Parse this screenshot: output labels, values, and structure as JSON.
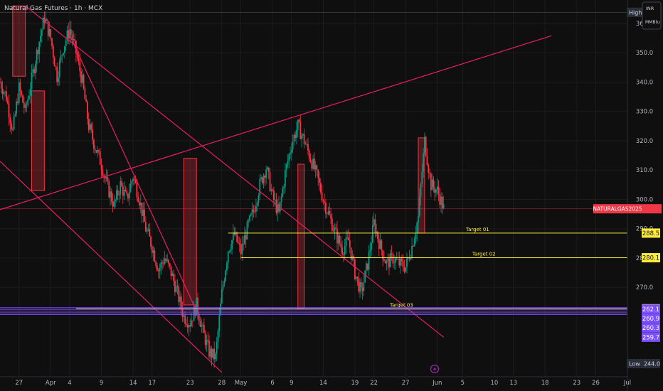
{
  "header": {
    "title": "Natural Gas Futures · 1h · MCX"
  },
  "currency": {
    "code": "INR",
    "unit": "MMBtu"
  },
  "chart_data": {
    "type": "candlestick",
    "y_range": [
      239.5,
      368
    ],
    "x_range": [
      "2025-03-24",
      "2025-07-01"
    ],
    "y_ticks": [
      270.0,
      280.0,
      290.0,
      300.0,
      310.0,
      320.0,
      330.0,
      340.0,
      350.0,
      360.0
    ],
    "x_ticks": [
      {
        "label": "27",
        "date": "2025-03-27"
      },
      {
        "label": "Apr",
        "date": "2025-04-01"
      },
      {
        "label": "4",
        "date": "2025-04-04"
      },
      {
        "label": "9",
        "date": "2025-04-09"
      },
      {
        "label": "14",
        "date": "2025-04-14"
      },
      {
        "label": "17",
        "date": "2025-04-17"
      },
      {
        "label": "23",
        "date": "2025-04-23"
      },
      {
        "label": "28",
        "date": "2025-04-28"
      },
      {
        "label": "May",
        "date": "2025-05-01"
      },
      {
        "label": "6",
        "date": "2025-05-06"
      },
      {
        "label": "9",
        "date": "2025-05-09"
      },
      {
        "label": "14",
        "date": "2025-05-14"
      },
      {
        "label": "19",
        "date": "2025-05-19"
      },
      {
        "label": "22",
        "date": "2025-05-22"
      },
      {
        "label": "27",
        "date": "2025-05-27"
      },
      {
        "label": "Jun",
        "date": "2025-06-01"
      },
      {
        "label": "5",
        "date": "2025-06-05"
      },
      {
        "label": "10",
        "date": "2025-06-10"
      },
      {
        "label": "13",
        "date": "2025-06-13"
      },
      {
        "label": "18",
        "date": "2025-06-18"
      },
      {
        "label": "23",
        "date": "2025-06-23"
      },
      {
        "label": "26",
        "date": "2025-06-26"
      },
      {
        "label": "Jul",
        "date": "2025-07-01"
      }
    ],
    "price_path": [
      [
        "2025-03-24",
        340
      ],
      [
        "2025-03-25",
        335
      ],
      [
        "2025-03-26",
        323
      ],
      [
        "2025-03-27",
        338
      ],
      [
        "2025-03-28",
        330
      ],
      [
        "2025-03-30",
        352
      ],
      [
        "2025-03-31",
        362
      ],
      [
        "2025-04-01",
        355
      ],
      [
        "2025-04-02",
        342
      ],
      [
        "2025-04-03",
        352
      ],
      [
        "2025-04-04",
        358
      ],
      [
        "2025-04-05",
        350
      ],
      [
        "2025-04-06",
        340
      ],
      [
        "2025-04-07",
        325
      ],
      [
        "2025-04-08",
        318
      ],
      [
        "2025-04-09",
        312
      ],
      [
        "2025-04-10",
        304
      ],
      [
        "2025-04-11",
        298
      ],
      [
        "2025-04-12",
        305
      ],
      [
        "2025-04-13",
        300
      ],
      [
        "2025-04-14",
        308
      ],
      [
        "2025-04-15",
        300
      ],
      [
        "2025-04-16",
        290
      ],
      [
        "2025-04-17",
        284
      ],
      [
        "2025-04-18",
        276
      ],
      [
        "2025-04-19",
        280
      ],
      [
        "2025-04-20",
        275
      ],
      [
        "2025-04-21",
        268
      ],
      [
        "2025-04-22",
        260
      ],
      [
        "2025-04-23",
        258
      ],
      [
        "2025-04-24",
        264
      ],
      [
        "2025-04-25",
        255
      ],
      [
        "2025-04-26",
        248
      ],
      [
        "2025-04-27",
        246
      ],
      [
        "2025-04-28",
        268
      ],
      [
        "2025-04-29",
        283
      ],
      [
        "2025-04-30",
        288
      ],
      [
        "2025-05-01",
        282
      ],
      [
        "2025-05-02",
        290
      ],
      [
        "2025-05-03",
        296
      ],
      [
        "2025-05-04",
        305
      ],
      [
        "2025-05-05",
        311
      ],
      [
        "2025-05-06",
        301
      ],
      [
        "2025-05-07",
        295
      ],
      [
        "2025-05-08",
        309
      ],
      [
        "2025-05-09",
        319
      ],
      [
        "2025-05-10",
        325
      ],
      [
        "2025-05-11",
        320
      ],
      [
        "2025-05-12",
        314
      ],
      [
        "2025-05-13",
        308
      ],
      [
        "2025-05-14",
        300
      ],
      [
        "2025-05-15",
        294
      ],
      [
        "2025-05-16",
        288
      ],
      [
        "2025-05-17",
        283
      ],
      [
        "2025-05-18",
        286
      ],
      [
        "2025-05-19",
        275
      ],
      [
        "2025-05-20",
        268
      ],
      [
        "2025-05-21",
        278
      ],
      [
        "2025-05-22",
        292
      ],
      [
        "2025-05-23",
        284
      ],
      [
        "2025-05-24",
        278
      ],
      [
        "2025-05-25",
        280
      ],
      [
        "2025-05-26",
        278
      ],
      [
        "2025-05-27",
        277
      ],
      [
        "2025-05-28",
        284
      ],
      [
        "2025-05-29",
        294
      ],
      [
        "2025-05-30",
        320
      ],
      [
        "2025-05-31",
        305
      ],
      [
        "2025-06-01",
        303
      ],
      [
        "2025-06-02",
        297
      ]
    ],
    "horizontal_levels": [
      {
        "name": "Target 01",
        "value": 288.5,
        "label": "288.5",
        "color": "#ffeb3b"
      },
      {
        "name": "Target 02",
        "value": 280.1,
        "label": "280.1",
        "color": "#ffeb3b"
      },
      {
        "name": "Target 03",
        "value": 262.7,
        "label": "262.7",
        "color": "#ffeb3b"
      }
    ],
    "support_band": {
      "color": "#7b4fff",
      "values": [
        262.1,
        260.9,
        260.3,
        259.7
      ]
    },
    "high": {
      "label": "High",
      "value": "363.8",
      "y": 363.8
    },
    "low": {
      "label": "Low",
      "value": "244.0",
      "y": 244.0
    },
    "current_symbol": {
      "label": "NATURALGAS2025",
      "y": 296.8,
      "color": "#f23645"
    },
    "trend_lines": [
      {
        "from": [
          "2025-03-24",
          296.5
        ],
        "to": [
          "2025-06-19",
          355.8
        ],
        "color": "#e91e63"
      },
      {
        "from": [
          "2025-03-28",
          366
        ],
        "to": [
          "2025-06-02",
          253
        ],
        "color": "#e91e63"
      },
      {
        "from": [
          "2025-03-24",
          313
        ],
        "to": [
          "2025-04-28",
          241
        ],
        "color": "#e91e63"
      },
      {
        "from": [
          "2025-04-04",
          356
        ],
        "to": [
          "2025-04-24",
          262
        ],
        "color": "#e91e63"
      }
    ],
    "zones": [
      {
        "x0": "2025-03-26",
        "x1": "2025-03-28",
        "y0": 342,
        "y1": 366
      },
      {
        "x0": "2025-03-29",
        "x1": "2025-03-31",
        "y0": 303,
        "y1": 337
      },
      {
        "x0": "2025-04-22",
        "x1": "2025-04-24",
        "y0": 264,
        "y1": 314
      },
      {
        "x0": "2025-05-10",
        "x1": "2025-05-11",
        "y0": 263,
        "y1": 312
      },
      {
        "x0": "2025-05-29",
        "x1": "2025-05-30",
        "y0": 288.5,
        "y1": 321
      }
    ]
  }
}
